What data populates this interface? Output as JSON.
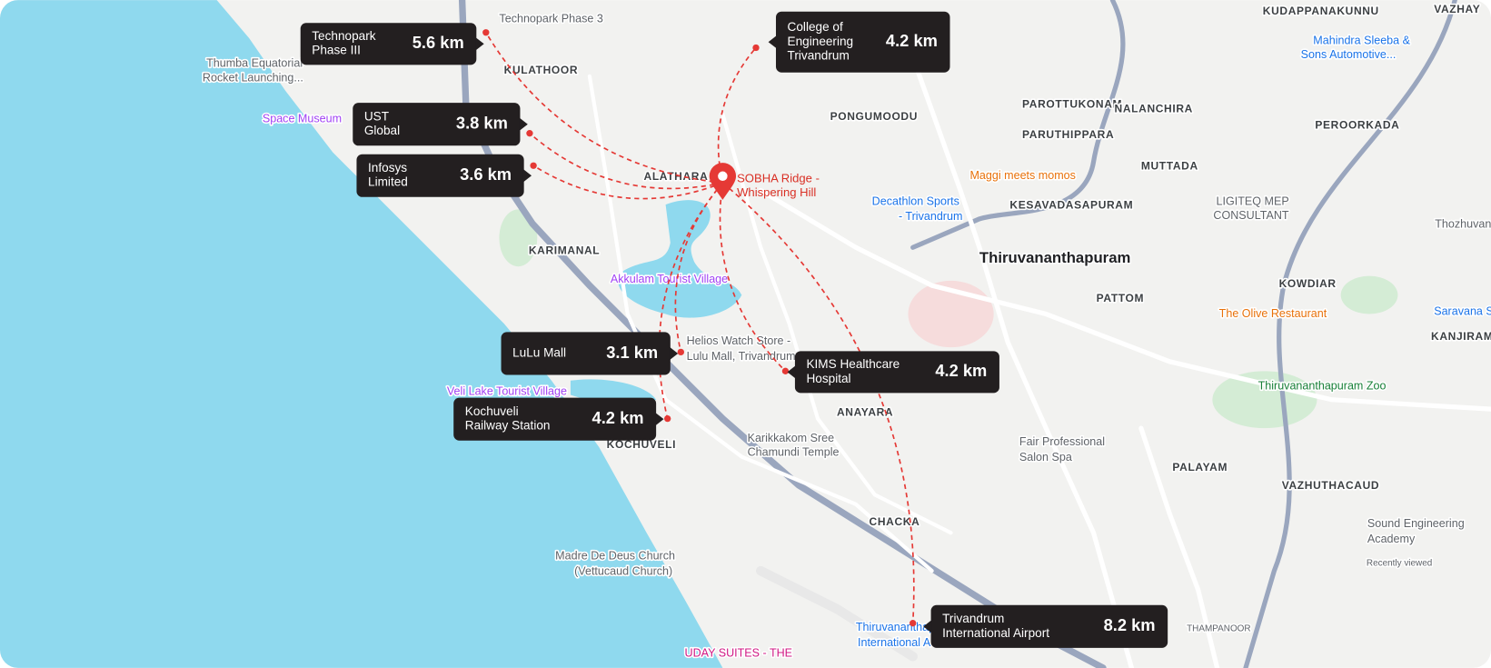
{
  "origin": {
    "label": [
      "SOBHA Ridge -",
      "Whispering Hill"
    ]
  },
  "destinations": [
    {
      "name": [
        "Technopark",
        "Phase III"
      ],
      "distance": "5.6 km"
    },
    {
      "name": [
        "College of",
        "Engineering",
        "Trivandrum"
      ],
      "distance": "4.2 km"
    },
    {
      "name": [
        "UST",
        "Global"
      ],
      "distance": "3.8 km"
    },
    {
      "name": [
        "Infosys",
        "Limited"
      ],
      "distance": "3.6 km"
    },
    {
      "name": [
        "LuLu Mall"
      ],
      "distance": "3.1 km"
    },
    {
      "name": [
        "KIMS Healthcare",
        "Hospital"
      ],
      "distance": "4.2 km"
    },
    {
      "name": [
        "Kochuveli",
        "Railway Station"
      ],
      "distance": "4.2 km"
    },
    {
      "name": [
        "Trivandrum",
        "International Airport"
      ],
      "distance": "8.2 km"
    }
  ],
  "map_labels": [
    {
      "text": "Technopark Phase 3"
    },
    {
      "text": "KULATHOOR"
    },
    {
      "text": "Thumba Equatorial"
    },
    {
      "text": "Rocket Launching..."
    },
    {
      "text": "Space Museum"
    },
    {
      "text": "PONGUMOODU"
    },
    {
      "text": "ALATHARA"
    },
    {
      "text": "KARIMANAL"
    },
    {
      "text": "Akkulam Tourist Village"
    },
    {
      "text": "Helios Watch Store -"
    },
    {
      "text": "Lulu Mall, Trivandrum"
    },
    {
      "text": "Veli Lake Tourist Village"
    },
    {
      "text": "KOCHUVELI"
    },
    {
      "text": "ANAYARA"
    },
    {
      "text": "Karikkakom Sree"
    },
    {
      "text": "Chamundi Temple"
    },
    {
      "text": "CHACKA"
    },
    {
      "text": "Madre De Deus Church"
    },
    {
      "text": "(Vettucaud Church)"
    },
    {
      "text": "UDAY SUITES - THE"
    },
    {
      "text": "Thiruvananthapuram"
    },
    {
      "text": "KESAVADASAPURAM"
    },
    {
      "text": "Decathlon Sports"
    },
    {
      "text": "- Trivandrum"
    },
    {
      "text": "Maggi meets momos"
    },
    {
      "text": "PAROTTUKONAM"
    },
    {
      "text": "PARUTHIPPARA"
    },
    {
      "text": "NALANCHIRA"
    },
    {
      "text": "MUTTADA"
    },
    {
      "text": "KUDAPPANAKUNNU"
    },
    {
      "text": "Mahindra Sleeba &"
    },
    {
      "text": "Sons Automotive..."
    },
    {
      "text": "PEROORKADA"
    },
    {
      "text": "LIGITEQ MEP"
    },
    {
      "text": "CONSULTANT"
    },
    {
      "text": "Thozhuvancode"
    },
    {
      "text": "KOWDIAR"
    },
    {
      "text": "PATTOM"
    },
    {
      "text": "The Olive Restaurant"
    },
    {
      "text": "Saravana S"
    },
    {
      "text": "KANJIRAMPA"
    },
    {
      "text": "Thiruvananthapuram Zoo"
    },
    {
      "text": "Fair Professional"
    },
    {
      "text": "Salon Spa"
    },
    {
      "text": "PALAYAM"
    },
    {
      "text": "VAZHUTHACAUD"
    },
    {
      "text": "Sound Engineering"
    },
    {
      "text": "Academy"
    },
    {
      "text": "Recently viewed"
    },
    {
      "text": "THAMPANOOR"
    },
    {
      "text": "Thiruvananthapuram"
    },
    {
      "text": "International A"
    },
    {
      "text": "VAZHAY"
    }
  ]
}
